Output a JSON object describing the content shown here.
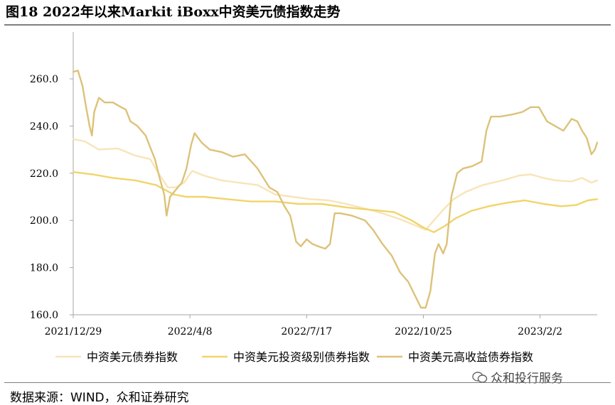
{
  "title": "图18 2022年以来Markit iBoxx中资美元债指数走势",
  "source": "数据来源：WIND，众和证券研究",
  "watermark": "众和投行服务",
  "chart_data": {
    "type": "line",
    "ylim": [
      160,
      270
    ],
    "yticks": [
      "160.0",
      "180.0",
      "200.0",
      "220.0",
      "240.0",
      "260.0"
    ],
    "yticks_values": [
      160,
      180,
      200,
      220,
      240,
      260
    ],
    "xlim": [
      "2021-12-29",
      "2023-03-23"
    ],
    "xticks": [
      "2021/12/29",
      "2022/4/8",
      "2022/7/17",
      "2022/10/25",
      "2023/2/2"
    ],
    "xticks_dates": [
      "2021-12-29",
      "2022-04-08",
      "2022-07-17",
      "2022-10-25",
      "2023-02-02"
    ],
    "legend_position": "bottom",
    "colors": {
      "overall": "#f8e4b8",
      "ig": "#f1d46a",
      "hy": "#dcc279",
      "axis": "#a6a6a6"
    },
    "series": [
      {
        "name": "中资美元债券指数",
        "points": [
          [
            "2021-12-29",
            234.5
          ],
          [
            "2022-01-08",
            233.5
          ],
          [
            "2022-01-20",
            230
          ],
          [
            "2022-02-05",
            230.5
          ],
          [
            "2022-02-20",
            227.5
          ],
          [
            "2022-03-05",
            226
          ],
          [
            "2022-03-12",
            220
          ],
          [
            "2022-03-20",
            214
          ],
          [
            "2022-03-27",
            214
          ],
          [
            "2022-04-03",
            216
          ],
          [
            "2022-04-10",
            221
          ],
          [
            "2022-04-20",
            219
          ],
          [
            "2022-05-05",
            217
          ],
          [
            "2022-05-20",
            216
          ],
          [
            "2022-06-05",
            215
          ],
          [
            "2022-06-20",
            211
          ],
          [
            "2022-07-05",
            210
          ],
          [
            "2022-07-20",
            209
          ],
          [
            "2022-08-05",
            208.5
          ],
          [
            "2022-08-20",
            207
          ],
          [
            "2022-09-05",
            205
          ],
          [
            "2022-09-20",
            203
          ],
          [
            "2022-10-05",
            200.5
          ],
          [
            "2022-10-20",
            197.5
          ],
          [
            "2022-10-27",
            196
          ],
          [
            "2022-11-03",
            200
          ],
          [
            "2022-11-12",
            205
          ],
          [
            "2022-11-20",
            209
          ],
          [
            "2022-11-30",
            212
          ],
          [
            "2022-12-15",
            215
          ],
          [
            "2023-01-01",
            217
          ],
          [
            "2023-01-15",
            219
          ],
          [
            "2023-01-25",
            219.5
          ],
          [
            "2023-02-05",
            218
          ],
          [
            "2023-02-15",
            217
          ],
          [
            "2023-03-01",
            216.5
          ],
          [
            "2023-03-10",
            218
          ],
          [
            "2023-03-18",
            216
          ],
          [
            "2023-03-23",
            217
          ]
        ]
      },
      {
        "name": "中资美元投资级别债券指数",
        "points": [
          [
            "2021-12-29",
            220.5
          ],
          [
            "2022-01-15",
            219.5
          ],
          [
            "2022-02-01",
            218
          ],
          [
            "2022-02-20",
            217
          ],
          [
            "2022-03-10",
            215
          ],
          [
            "2022-03-25",
            211
          ],
          [
            "2022-04-05",
            210
          ],
          [
            "2022-04-20",
            210
          ],
          [
            "2022-05-10",
            209
          ],
          [
            "2022-05-30",
            208
          ],
          [
            "2022-06-20",
            208
          ],
          [
            "2022-07-10",
            207
          ],
          [
            "2022-07-30",
            207
          ],
          [
            "2022-08-20",
            205.5
          ],
          [
            "2022-09-10",
            204.5
          ],
          [
            "2022-09-30",
            203.5
          ],
          [
            "2022-10-15",
            200
          ],
          [
            "2022-10-25",
            197
          ],
          [
            "2022-11-03",
            195
          ],
          [
            "2022-11-12",
            197.5
          ],
          [
            "2022-11-22",
            201
          ],
          [
            "2022-12-05",
            204
          ],
          [
            "2022-12-20",
            206
          ],
          [
            "2023-01-05",
            207.5
          ],
          [
            "2023-01-20",
            208.5
          ],
          [
            "2023-02-05",
            207
          ],
          [
            "2023-02-20",
            206
          ],
          [
            "2023-03-05",
            206.5
          ],
          [
            "2023-03-15",
            208.5
          ],
          [
            "2023-03-23",
            209
          ]
        ]
      },
      {
        "name": "中资美元高收益债券指数",
        "points": [
          [
            "2021-12-29",
            263
          ],
          [
            "2022-01-02",
            263.5
          ],
          [
            "2022-01-06",
            257
          ],
          [
            "2022-01-09",
            248
          ],
          [
            "2022-01-12",
            240
          ],
          [
            "2022-01-14",
            236
          ],
          [
            "2022-01-16",
            246
          ],
          [
            "2022-01-20",
            252
          ],
          [
            "2022-01-25",
            250
          ],
          [
            "2022-02-01",
            250
          ],
          [
            "2022-02-08",
            248
          ],
          [
            "2022-02-12",
            247
          ],
          [
            "2022-02-16",
            242
          ],
          [
            "2022-02-22",
            240
          ],
          [
            "2022-03-01",
            236
          ],
          [
            "2022-03-05",
            231
          ],
          [
            "2022-03-09",
            226
          ],
          [
            "2022-03-13",
            218
          ],
          [
            "2022-03-17",
            211
          ],
          [
            "2022-03-19",
            202
          ],
          [
            "2022-03-22",
            210
          ],
          [
            "2022-03-27",
            213
          ],
          [
            "2022-04-01",
            216
          ],
          [
            "2022-04-05",
            222
          ],
          [
            "2022-04-09",
            232
          ],
          [
            "2022-04-12",
            237
          ],
          [
            "2022-04-18",
            233
          ],
          [
            "2022-04-25",
            230
          ],
          [
            "2022-05-05",
            229
          ],
          [
            "2022-05-15",
            227
          ],
          [
            "2022-05-25",
            228
          ],
          [
            "2022-06-05",
            222
          ],
          [
            "2022-06-15",
            214
          ],
          [
            "2022-06-22",
            212
          ],
          [
            "2022-06-28",
            206
          ],
          [
            "2022-07-03",
            202
          ],
          [
            "2022-07-08",
            191
          ],
          [
            "2022-07-12",
            189
          ],
          [
            "2022-07-17",
            192
          ],
          [
            "2022-07-22",
            190
          ],
          [
            "2022-07-27",
            189
          ],
          [
            "2022-08-02",
            188
          ],
          [
            "2022-08-06",
            190
          ],
          [
            "2022-08-10",
            203
          ],
          [
            "2022-08-15",
            203
          ],
          [
            "2022-08-25",
            202
          ],
          [
            "2022-09-05",
            200
          ],
          [
            "2022-09-12",
            196
          ],
          [
            "2022-09-20",
            190
          ],
          [
            "2022-09-28",
            185
          ],
          [
            "2022-10-05",
            178
          ],
          [
            "2022-10-12",
            174
          ],
          [
            "2022-10-18",
            168
          ],
          [
            "2022-10-23",
            163
          ],
          [
            "2022-10-27",
            163
          ],
          [
            "2022-10-31",
            170
          ],
          [
            "2022-11-04",
            186
          ],
          [
            "2022-11-07",
            190
          ],
          [
            "2022-11-11",
            186
          ],
          [
            "2022-11-14",
            190
          ],
          [
            "2022-11-18",
            210
          ],
          [
            "2022-11-23",
            220
          ],
          [
            "2022-11-28",
            222
          ],
          [
            "2022-12-06",
            223
          ],
          [
            "2022-12-14",
            225
          ],
          [
            "2022-12-18",
            238
          ],
          [
            "2022-12-22",
            244
          ],
          [
            "2022-12-30",
            244
          ],
          [
            "2023-01-10",
            245
          ],
          [
            "2023-01-18",
            246
          ],
          [
            "2023-01-25",
            248
          ],
          [
            "2023-02-01",
            248
          ],
          [
            "2023-02-08",
            242
          ],
          [
            "2023-02-15",
            240
          ],
          [
            "2023-02-22",
            238
          ],
          [
            "2023-03-01",
            243
          ],
          [
            "2023-03-06",
            242
          ],
          [
            "2023-03-10",
            238
          ],
          [
            "2023-03-14",
            235
          ],
          [
            "2023-03-18",
            228
          ],
          [
            "2023-03-21",
            230
          ],
          [
            "2023-03-23",
            233
          ]
        ]
      }
    ]
  }
}
